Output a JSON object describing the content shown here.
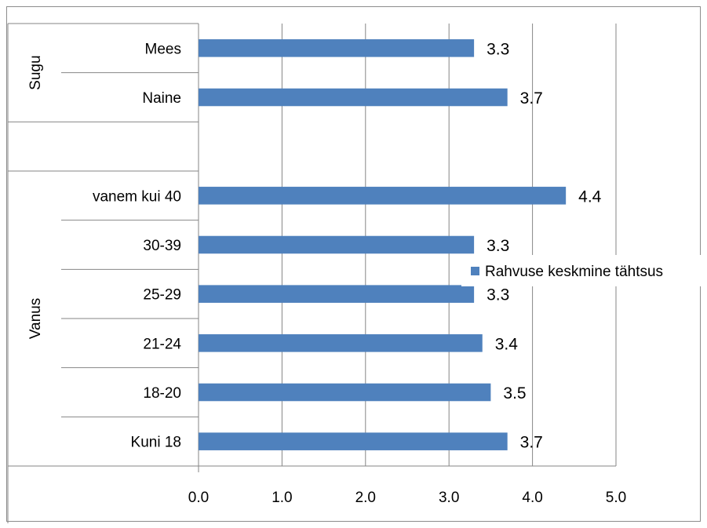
{
  "chart_data": {
    "type": "bar",
    "orientation": "horizontal",
    "title": "",
    "xlabel": "",
    "ylabel": "",
    "xlim": [
      0,
      5
    ],
    "xticks": [
      "0.0",
      "1.0",
      "2.0",
      "3.0",
      "4.0",
      "5.0"
    ],
    "grid": true,
    "legend_position": "right",
    "groups": [
      {
        "label": "Sugu",
        "categories": [
          "Mees",
          "Naine"
        ]
      },
      {
        "label": "",
        "categories": [
          ""
        ]
      },
      {
        "label": "Vanus",
        "categories": [
          "vanem kui 40",
          "30-39",
          "25-29",
          "21-24",
          "18-20",
          "Kuni 18"
        ]
      }
    ],
    "series": [
      {
        "name": "Rahvuse keskmine tähtsus",
        "color": "#4f81bd",
        "values": [
          3.3,
          3.7,
          null,
          4.4,
          3.3,
          3.3,
          3.4,
          3.5,
          3.7
        ],
        "labels": [
          "3.3",
          "3.7",
          "",
          "4.4",
          "3.3",
          "3.3",
          "3.4",
          "3.5",
          "3.7"
        ]
      }
    ]
  }
}
